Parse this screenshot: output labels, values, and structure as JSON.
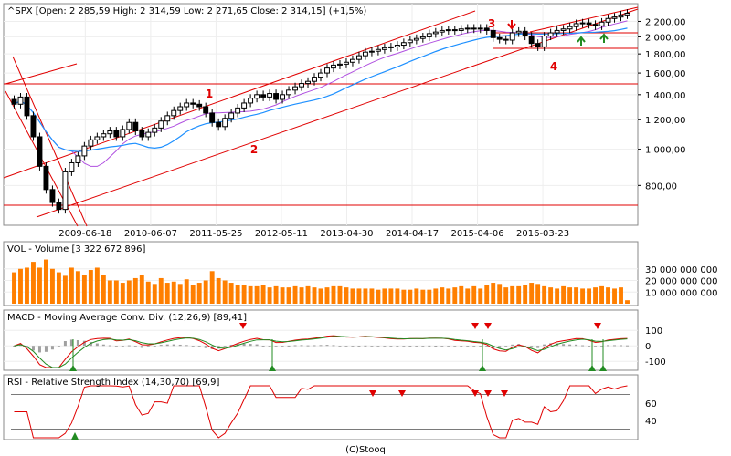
{
  "footer": "(C)Stooq",
  "colors": {
    "candle_up": "#ffffff",
    "candle_down": "#000000",
    "trend": "#e00000",
    "ma_fast": "#b050e0",
    "ma_slow": "#1e90ff",
    "volume": "#ff7f00",
    "macd": "#e00000",
    "signal": "#228b22",
    "hist": "#a0a0a0",
    "rsi": "#e00000",
    "rsi_band": "#7a7a7a",
    "buy": "#228b22",
    "sell": "#e00000",
    "panel_border": "#888888"
  },
  "chart_data": [
    {
      "type": "candlestick",
      "title": "^SPX [Open: 2 285,59  High: 2 314,59  Low: 2 271,65  Close: 2 314,15] (+1,5%)",
      "x_labels": [
        "2009-06-18",
        "2010-06-07",
        "2011-05-25",
        "2012-05-11",
        "2013-04-30",
        "2014-04-17",
        "2015-04-06",
        "2016-03-23"
      ],
      "y_scale": "log",
      "y_ticks": [
        "800,00",
        "1 000,00",
        "1 200,00",
        "1 400,00",
        "1 600,00",
        "1 800,00",
        "2 000,00",
        "2 200,00"
      ],
      "y_tick_values": [
        800,
        1000,
        1200,
        1400,
        1600,
        1800,
        2000,
        2200
      ],
      "ylim": [
        640,
        2400
      ],
      "annotations": [
        "1",
        "2",
        "3",
        "4"
      ],
      "closes": [
        1320,
        1380,
        1230,
        1080,
        900,
        780,
        720,
        690,
        870,
        920,
        960,
        1020,
        1060,
        1080,
        1100,
        1120,
        1080,
        1130,
        1180,
        1120,
        1080,
        1110,
        1140,
        1190,
        1230,
        1270,
        1300,
        1330,
        1320,
        1300,
        1250,
        1180,
        1150,
        1210,
        1250,
        1290,
        1330,
        1370,
        1400,
        1380,
        1410,
        1360,
        1400,
        1440,
        1470,
        1500,
        1520,
        1560,
        1600,
        1650,
        1680,
        1690,
        1710,
        1740,
        1780,
        1820,
        1830,
        1850,
        1870,
        1880,
        1900,
        1930,
        1960,
        1980,
        2000,
        2040,
        2060,
        2080,
        2090,
        2080,
        2100,
        2110,
        2100,
        2110,
        2080,
        1990,
        1970,
        1960,
        2050,
        2070,
        2010,
        1920,
        1880,
        2010,
        2050,
        2080,
        2100,
        2130,
        2170,
        2180,
        2160,
        2140,
        2190,
        2240,
        2260,
        2290,
        2314
      ],
      "volume": {
        "title": "VOL - Volume [3 322 672 896]",
        "y_ticks": [
          "10 000 000 000",
          "20 000 000 000",
          "30 000 000 000"
        ],
        "y_tick_values": [
          10000000000,
          20000000000,
          30000000000
        ],
        "values_bn": [
          27,
          30,
          31,
          36,
          31,
          38,
          30,
          27,
          24,
          31,
          28,
          25,
          29,
          31,
          25,
          20,
          20,
          18,
          20,
          22,
          25,
          19,
          17,
          22,
          18,
          19,
          17,
          21,
          16,
          18,
          20,
          28,
          22,
          20,
          18,
          16,
          16,
          15,
          15,
          16,
          14,
          15,
          14,
          14,
          15,
          14,
          15,
          14,
          13,
          14,
          15,
          15,
          14,
          13,
          13,
          13,
          13,
          12,
          13,
          13,
          13,
          12,
          12,
          13,
          12,
          12,
          13,
          14,
          13,
          14,
          15,
          13,
          15,
          13,
          16,
          18,
          17,
          14,
          15,
          15,
          16,
          18,
          17,
          15,
          14,
          13,
          15,
          14,
          14,
          13,
          13,
          14,
          15,
          14,
          13,
          14,
          3
        ]
      },
      "macd": {
        "title": "MACD - Moving Average Conv. Div. (12,26,9) [89,41]",
        "y_ticks": [
          "-100",
          "0",
          "100"
        ],
        "y_tick_values": [
          -100,
          0,
          100
        ]
      },
      "rsi": {
        "title": "RSI - Relative Strength Index (14,30,70) [69,9]",
        "y_ticks": [
          "40",
          "60"
        ],
        "y_tick_values": [
          40,
          60
        ],
        "levels": [
          30,
          70
        ]
      }
    }
  ]
}
